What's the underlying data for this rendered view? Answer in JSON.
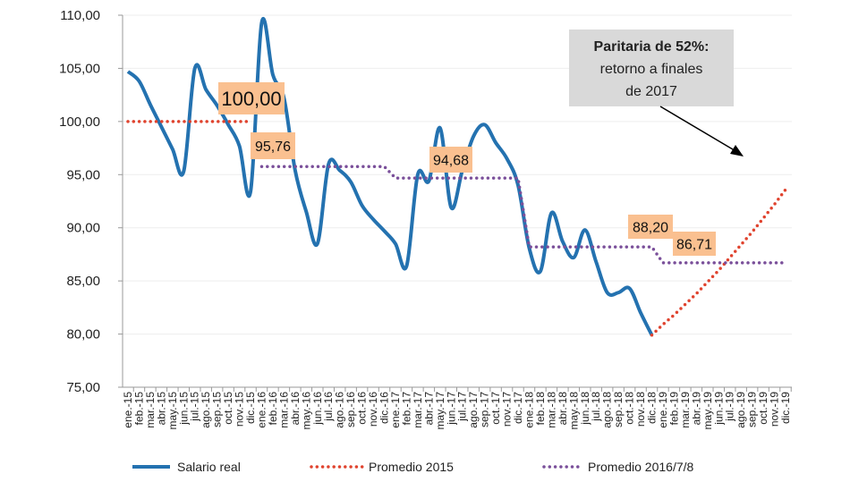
{
  "chart_data": {
    "type": "line",
    "title": "",
    "xlabel": "",
    "ylabel": "",
    "ylim": [
      75,
      110
    ],
    "yticks": [
      "75,00",
      "80,00",
      "85,00",
      "90,00",
      "95,00",
      "100,00",
      "105,00",
      "110,00"
    ],
    "grid": true,
    "legend_position": "bottom",
    "categories": [
      "ene.-15",
      "feb.-15",
      "mar.-15",
      "abr.-15",
      "may.-15",
      "jun.-15",
      "jul.-15",
      "ago.-15",
      "sep.-15",
      "oct.-15",
      "nov.-15",
      "dic.-15",
      "ene.-16",
      "feb.-16",
      "mar.-16",
      "abr.-16",
      "may.-16",
      "jun.-16",
      "jul.-16",
      "ago.-16",
      "sep.-16",
      "oct.-16",
      "nov.-16",
      "dic.-16",
      "ene.-17",
      "feb.-17",
      "mar.-17",
      "abr.-17",
      "may.-17",
      "jun.-17",
      "jul.-17",
      "ago.-17",
      "sep.-17",
      "oct.-17",
      "nov.-17",
      "dic.-17",
      "ene.-18",
      "feb.-18",
      "mar.-18",
      "abr.-18",
      "may.-18",
      "jun.-18",
      "jul.-18",
      "ago.-18",
      "sep.-18",
      "oct.-18",
      "nov.-18",
      "dic.-18",
      "ene.-19",
      "feb.-19",
      "mar.-19",
      "abr.-19",
      "may.-19",
      "jun.-19",
      "jul.-19",
      "ago.-19",
      "sep.-19",
      "oct.-19",
      "nov.-19",
      "dic.-19"
    ],
    "series": [
      {
        "name": "Salario real",
        "color": "#2472b0",
        "style": "solid",
        "values": [
          104.7,
          103.8,
          101.6,
          99.5,
          97.4,
          95.3,
          105.0,
          103.0,
          101.5,
          99.7,
          97.7,
          93.4,
          109.3,
          104.4,
          102.2,
          95.4,
          91.5,
          88.5,
          96.0,
          95.4,
          94.3,
          92.1,
          90.8,
          89.7,
          88.5,
          86.4,
          95.0,
          94.4,
          99.4,
          91.9,
          95.4,
          98.6,
          99.7,
          98.0,
          96.5,
          94.0,
          88.1,
          85.9,
          91.4,
          88.7,
          87.2,
          89.8,
          86.8,
          83.9,
          83.9,
          84.3,
          82.0,
          79.9,
          null,
          null,
          null,
          null,
          null,
          null,
          null,
          null,
          null,
          null,
          null,
          null
        ]
      },
      {
        "name": "Promedio 2015",
        "color": "#e0432e",
        "style": "dotted",
        "values": [
          100,
          100,
          100,
          100,
          100,
          100,
          100,
          100,
          100,
          100,
          100,
          100,
          null,
          null,
          null,
          null,
          null,
          null,
          null,
          null,
          null,
          null,
          null,
          null,
          null,
          null,
          null,
          null,
          null,
          null,
          null,
          null,
          null,
          null,
          null,
          null,
          null,
          null,
          null,
          null,
          null,
          null,
          null,
          null,
          null,
          null,
          null,
          79.9,
          80.9,
          81.8,
          82.8,
          83.8,
          84.9,
          86.0,
          87.2,
          88.4,
          89.6,
          90.9,
          92.2,
          93.6
        ]
      },
      {
        "name": "Promedio 2016/7/8",
        "color": "#7a4f9a",
        "style": "dotted",
        "values": [
          null,
          null,
          null,
          null,
          null,
          null,
          null,
          null,
          null,
          null,
          null,
          null,
          95.76,
          95.76,
          95.76,
          95.76,
          95.76,
          95.76,
          95.76,
          95.76,
          95.76,
          95.76,
          95.76,
          95.76,
          94.68,
          94.68,
          94.68,
          94.68,
          94.68,
          94.68,
          94.68,
          94.68,
          94.68,
          94.68,
          94.68,
          94.68,
          88.2,
          88.2,
          88.2,
          88.2,
          88.2,
          88.2,
          88.2,
          88.2,
          88.2,
          88.2,
          88.2,
          88.2,
          86.71,
          86.71,
          86.71,
          86.71,
          86.71,
          86.71,
          86.71,
          86.71,
          86.71,
          86.71,
          86.71,
          86.71
        ]
      }
    ],
    "data_labels": [
      {
        "text": "100,00",
        "category": "dic.-15",
        "value": 100
      },
      {
        "text": "95,76",
        "category": "dic.-15",
        "value": 95.76
      },
      {
        "text": "94,68",
        "category": "abr.-17",
        "value": 94.68
      },
      {
        "text": "88,20",
        "category": "oct.-18",
        "value": 88.2
      },
      {
        "text": "86,71",
        "category": "feb.-19",
        "value": 86.71
      }
    ],
    "label_box_color": "#fac090",
    "annotation": {
      "lines": [
        "Paritaria de 52%:",
        "retorno a finales",
        "de 2017"
      ],
      "box_color": "#d9d9d9"
    }
  }
}
